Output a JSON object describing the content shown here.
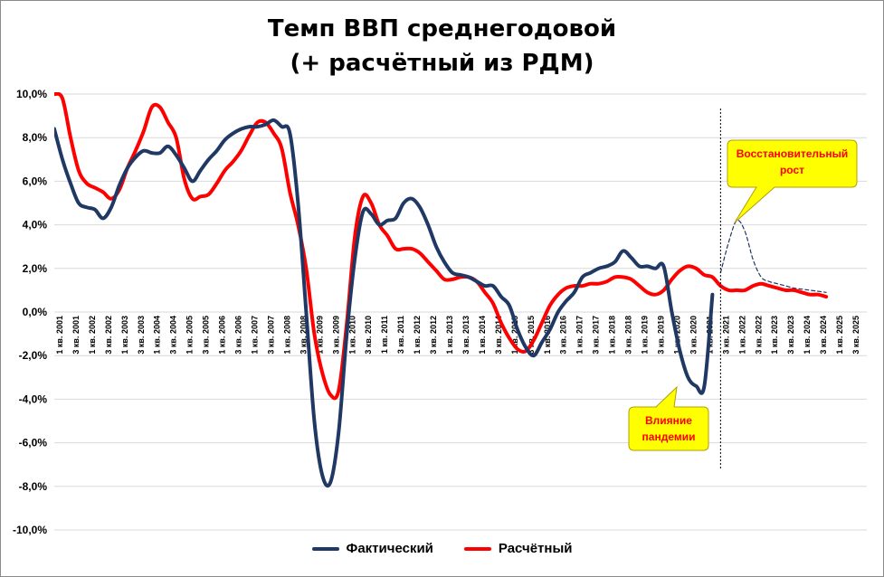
{
  "title_line1": "Темп ВВП среднегодовой",
  "title_line2": "(+ расчётный из РДМ)",
  "legend": [
    {
      "name": "Фактический",
      "color": "#1f3864"
    },
    {
      "name": "Расчётный",
      "color": "#ff0000"
    }
  ],
  "colors": {
    "callout_fill": "#ffff00",
    "callout_text": "#ff0000",
    "forecast": "#1f3864",
    "grid": "#d9d9d9"
  },
  "callouts": [
    {
      "name": "pandemic-callout",
      "lines": [
        "Влияние",
        "пандемии"
      ]
    },
    {
      "name": "recovery-callout",
      "lines": [
        "Восстановительный",
        "рост"
      ]
    }
  ],
  "chart_data": {
    "type": "line",
    "title": "Темп ВВП среднегодовой (+ расчётный из РДМ)",
    "ylim": [
      -10,
      10
    ],
    "ytick_values": [
      -10,
      -8,
      -6,
      -4,
      -2,
      0,
      2,
      4,
      6,
      8,
      10
    ],
    "ytick_labels": [
      "-10,0%",
      "-8,0%",
      "-6,0%",
      "-4,0%",
      "-2,0%",
      "0,0%",
      "2,0%",
      "4,0%",
      "6,0%",
      "8,0%",
      "10,0%"
    ],
    "grid": true,
    "legend_position": "bottom",
    "x_tick_labels": [
      "1 кв. 2001",
      "3 кв. 2001",
      "1 кв. 2002",
      "3 кв. 2002",
      "1 кв. 2003",
      "3 кв. 2003",
      "1 кв. 2004",
      "3 кв. 2004",
      "1 кв. 2005",
      "3 кв. 2005",
      "1 кв. 2006",
      "3 кв. 2006",
      "1 кв. 2007",
      "3 кв. 2007",
      "1 кв. 2008",
      "3 кв. 2008",
      "1 кв. 2009",
      "3 кв. 2009",
      "1 кв. 2010",
      "3 кв. 2010",
      "1 кв. 2011",
      "3 кв. 2011",
      "1 кв. 2012",
      "3 кв. 2012",
      "1 кв. 2013",
      "3 кв. 2013",
      "1 кв. 2014",
      "3 кв. 2014",
      "1 кв. 2015",
      "3 кв. 2015",
      "1 кв. 2016",
      "3 кв. 2016",
      "1 кв. 2017",
      "3 кв. 2017",
      "1 кв. 2018",
      "3 кв. 2018",
      "1 кв. 2019",
      "3 кв. 2019",
      "1 кв. 2020",
      "3 кв. 2020",
      "1 кв. 2021",
      "3 кв. 2021",
      "1 кв. 2022",
      "3 кв. 2022",
      "1 кв. 2023",
      "3 кв. 2023",
      "1 кв. 2024",
      "3 кв. 2024",
      "1 кв. 2025",
      "3 кв. 2025"
    ],
    "vline_x": 2021.5,
    "series": [
      {
        "name": "Фактический",
        "color": "#1f3864",
        "x": [
          2001.0,
          2001.25,
          2001.5,
          2001.75,
          2002.0,
          2002.25,
          2002.5,
          2002.75,
          2003.0,
          2003.25,
          2003.5,
          2003.75,
          2004.0,
          2004.25,
          2004.5,
          2004.75,
          2005.0,
          2005.25,
          2005.5,
          2005.75,
          2006.0,
          2006.25,
          2006.5,
          2006.75,
          2007.0,
          2007.25,
          2007.5,
          2007.75,
          2008.0,
          2008.25,
          2008.5,
          2008.75,
          2009.0,
          2009.25,
          2009.5,
          2009.75,
          2010.0,
          2010.25,
          2010.5,
          2010.75,
          2011.0,
          2011.25,
          2011.5,
          2011.75,
          2012.0,
          2012.25,
          2012.5,
          2012.75,
          2013.0,
          2013.25,
          2013.5,
          2013.75,
          2014.0,
          2014.25,
          2014.5,
          2014.75,
          2015.0,
          2015.25,
          2015.5,
          2015.75,
          2016.0,
          2016.25,
          2016.5,
          2016.75,
          2017.0,
          2017.25,
          2017.5,
          2017.75,
          2018.0,
          2018.25,
          2018.5,
          2018.75,
          2019.0,
          2019.25,
          2019.5,
          2019.75,
          2020.0,
          2020.25,
          2020.5,
          2020.75,
          2021.0,
          2021.25
        ],
        "values": [
          8.4,
          7.0,
          5.9,
          5.0,
          4.8,
          4.7,
          4.3,
          4.8,
          5.8,
          6.6,
          7.1,
          7.4,
          7.3,
          7.3,
          7.6,
          7.2,
          6.6,
          6.0,
          6.5,
          7.0,
          7.4,
          7.9,
          8.2,
          8.4,
          8.5,
          8.5,
          8.6,
          8.8,
          8.5,
          8.2,
          5.0,
          0.0,
          -5.0,
          -7.5,
          -7.8,
          -5.5,
          -1.0,
          2.5,
          4.6,
          4.5,
          4.0,
          4.2,
          4.3,
          5.0,
          5.2,
          4.8,
          4.0,
          3.0,
          2.3,
          1.8,
          1.7,
          1.6,
          1.4,
          1.2,
          1.2,
          0.7,
          0.3,
          -0.8,
          -1.6,
          -2.0,
          -1.4,
          -0.8,
          0.0,
          0.5,
          0.9,
          1.6,
          1.8,
          2.0,
          2.1,
          2.3,
          2.8,
          2.5,
          2.1,
          2.1,
          2.0,
          2.1,
          0.0,
          -1.8,
          -3.0,
          -3.4,
          -3.4,
          0.8
        ]
      },
      {
        "name": "Расчётный",
        "color": "#ff0000",
        "x": [
          2001.0,
          2001.25,
          2001.5,
          2001.75,
          2002.0,
          2002.25,
          2002.5,
          2002.75,
          2003.0,
          2003.25,
          2003.5,
          2003.75,
          2004.0,
          2004.25,
          2004.5,
          2004.75,
          2005.0,
          2005.25,
          2005.5,
          2005.75,
          2006.0,
          2006.25,
          2006.5,
          2006.75,
          2007.0,
          2007.25,
          2007.5,
          2007.75,
          2008.0,
          2008.25,
          2008.5,
          2008.75,
          2009.0,
          2009.25,
          2009.5,
          2009.75,
          2010.0,
          2010.25,
          2010.5,
          2010.75,
          2011.0,
          2011.25,
          2011.5,
          2011.75,
          2012.0,
          2012.25,
          2012.5,
          2012.75,
          2013.0,
          2013.25,
          2013.5,
          2013.75,
          2014.0,
          2014.25,
          2014.5,
          2014.75,
          2015.0,
          2015.25,
          2015.5,
          2015.75,
          2016.0,
          2016.25,
          2016.5,
          2016.75,
          2017.0,
          2017.25,
          2017.5,
          2017.75,
          2018.0,
          2018.25,
          2018.5,
          2018.75,
          2019.0,
          2019.25,
          2019.5,
          2019.75,
          2020.0,
          2020.25,
          2020.5,
          2020.75,
          2021.0,
          2021.25,
          2021.5,
          2021.75,
          2022.0,
          2022.25,
          2022.5,
          2022.75,
          2023.0,
          2023.25,
          2023.5,
          2023.75,
          2024.0,
          2024.25,
          2024.5,
          2024.75
        ],
        "values": [
          10.0,
          9.8,
          8.0,
          6.5,
          5.9,
          5.7,
          5.5,
          5.2,
          5.6,
          6.6,
          7.4,
          8.3,
          9.4,
          9.4,
          8.7,
          8.0,
          6.1,
          5.2,
          5.3,
          5.4,
          5.9,
          6.5,
          6.9,
          7.4,
          8.1,
          8.7,
          8.7,
          8.2,
          7.5,
          5.5,
          4.0,
          2.0,
          -1.0,
          -2.8,
          -3.8,
          -3.6,
          -0.5,
          3.5,
          5.3,
          5.0,
          4.0,
          3.5,
          2.9,
          2.9,
          2.9,
          2.7,
          2.3,
          1.9,
          1.5,
          1.5,
          1.6,
          1.6,
          1.4,
          0.9,
          0.4,
          -0.5,
          -1.2,
          -1.7,
          -1.8,
          -1.3,
          -0.5,
          0.3,
          0.8,
          1.1,
          1.2,
          1.2,
          1.3,
          1.3,
          1.4,
          1.6,
          1.6,
          1.5,
          1.2,
          0.9,
          0.8,
          1.0,
          1.5,
          1.9,
          2.1,
          2.0,
          1.7,
          1.6,
          1.2,
          1.0,
          1.0,
          1.0,
          1.2,
          1.3,
          1.2,
          1.1,
          1.0,
          1.0,
          0.9,
          0.8,
          0.8,
          0.7
        ]
      },
      {
        "name": "",
        "color": "#1f3864",
        "style": "dashed",
        "x": [
          2021.5,
          2021.75,
          2022.0,
          2022.25,
          2022.5,
          2022.75,
          2023.0,
          2023.25,
          2023.5,
          2023.75,
          2024.0,
          2024.25,
          2024.5,
          2024.75
        ],
        "values": [
          1.8,
          3.2,
          4.2,
          3.7,
          2.4,
          1.6,
          1.4,
          1.3,
          1.2,
          1.1,
          1.05,
          1.0,
          0.95,
          0.9
        ]
      }
    ]
  }
}
